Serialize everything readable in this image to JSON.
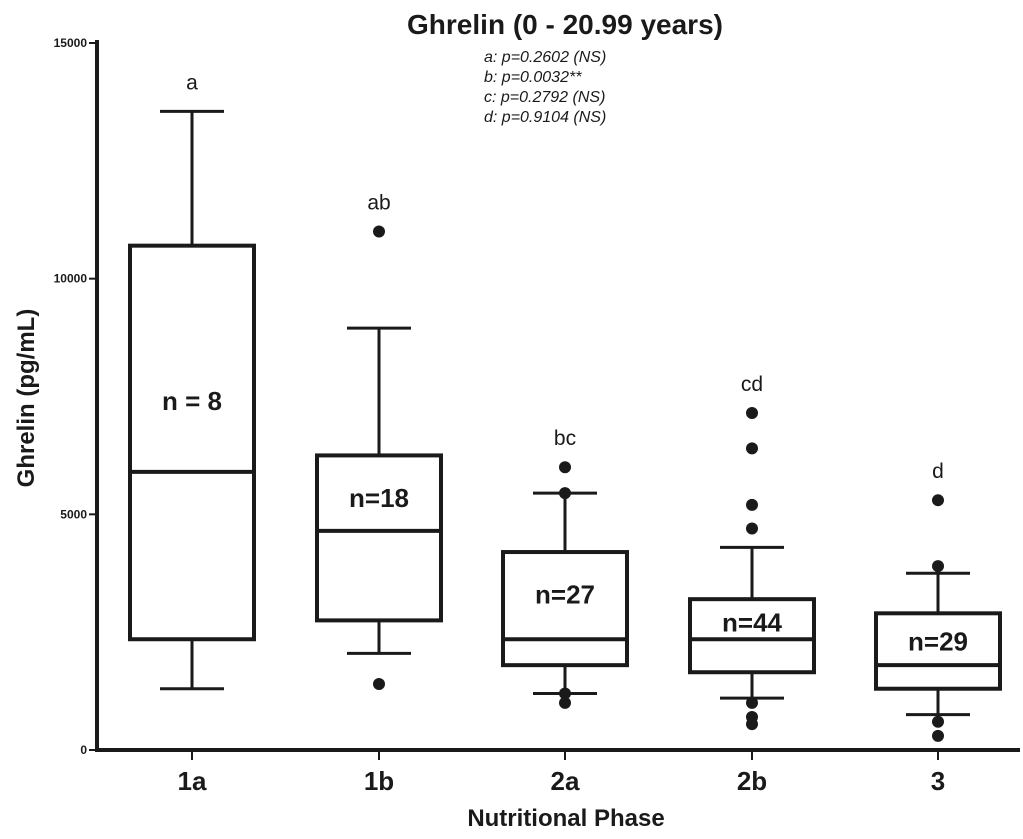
{
  "chart_data": {
    "type": "box",
    "title": "Ghrelin (0 - 20.99 years)",
    "xlabel": "Nutritional Phase",
    "ylabel": "Ghrelin (pg/mL)",
    "ylim": [
      0,
      15000
    ],
    "yticks": [
      0,
      5000,
      10000,
      15000
    ],
    "grid": false,
    "annotations": [
      "a: p=0.2602 (NS)",
      "b: p=0.0032**",
      "c: p=0.2792 (NS)",
      "d: p=0.9104 (NS)"
    ],
    "groups": [
      {
        "category": "1a",
        "n_label": "n = 8",
        "sig": "a",
        "whisker_low": 1300,
        "q1": 2350,
        "median": 5900,
        "q3": 10700,
        "whisker_high": 13550,
        "outliers": []
      },
      {
        "category": "1b",
        "n_label": "n=18",
        "sig": "ab",
        "whisker_low": 2050,
        "q1": 2750,
        "median": 4650,
        "q3": 6250,
        "whisker_high": 8950,
        "outliers": [
          1400,
          11000
        ]
      },
      {
        "category": "2a",
        "n_label": "n=27",
        "sig": "bc",
        "whisker_low": 1200,
        "q1": 1800,
        "median": 2350,
        "q3": 4200,
        "whisker_high": 5450,
        "outliers": [
          1000,
          1200,
          5450,
          6000
        ]
      },
      {
        "category": "2b",
        "n_label": "n=44",
        "sig": "cd",
        "whisker_low": 1100,
        "q1": 1650,
        "median": 2350,
        "q3": 3200,
        "whisker_high": 4300,
        "outliers": [
          550,
          700,
          1000,
          4700,
          5200,
          6400,
          7150
        ]
      },
      {
        "category": "3",
        "n_label": "n=29",
        "sig": "d",
        "whisker_low": 750,
        "q1": 1300,
        "median": 1800,
        "q3": 2900,
        "whisker_high": 3750,
        "outliers": [
          300,
          600,
          3900,
          5300
        ]
      }
    ]
  }
}
